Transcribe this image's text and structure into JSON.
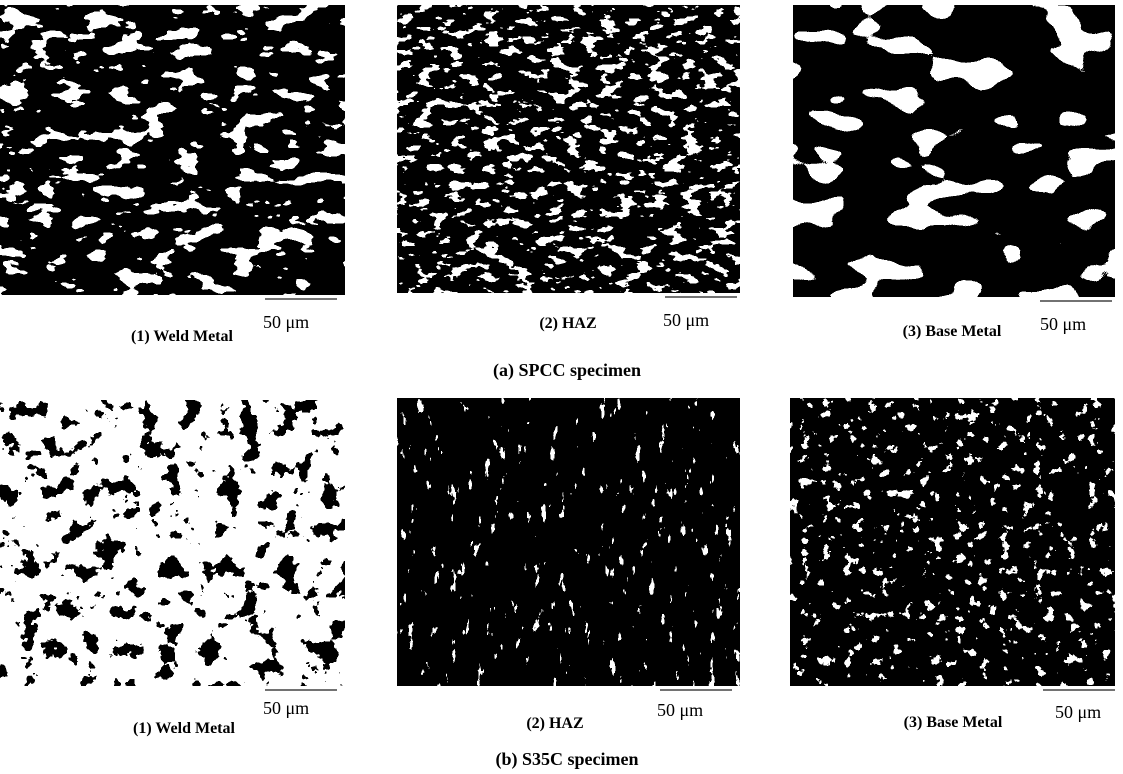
{
  "figure": {
    "groups": [
      {
        "caption": "(a)  SPCC specimen",
        "panels": [
          {
            "label": "(1) Weld Metal",
            "scale": "50 μm"
          },
          {
            "label": "(2) HAZ",
            "scale": "50 μm"
          },
          {
            "label": "(3) Base Metal",
            "scale": "50 μm"
          }
        ]
      },
      {
        "caption": "(b)  S35C specimen",
        "panels": [
          {
            "label": "(1) Weld Metal",
            "scale": "50 μm"
          },
          {
            "label": "(2) HAZ",
            "scale": "50 μm"
          },
          {
            "label": "(3) Base Metal",
            "scale": "50 μm"
          }
        ]
      }
    ]
  }
}
